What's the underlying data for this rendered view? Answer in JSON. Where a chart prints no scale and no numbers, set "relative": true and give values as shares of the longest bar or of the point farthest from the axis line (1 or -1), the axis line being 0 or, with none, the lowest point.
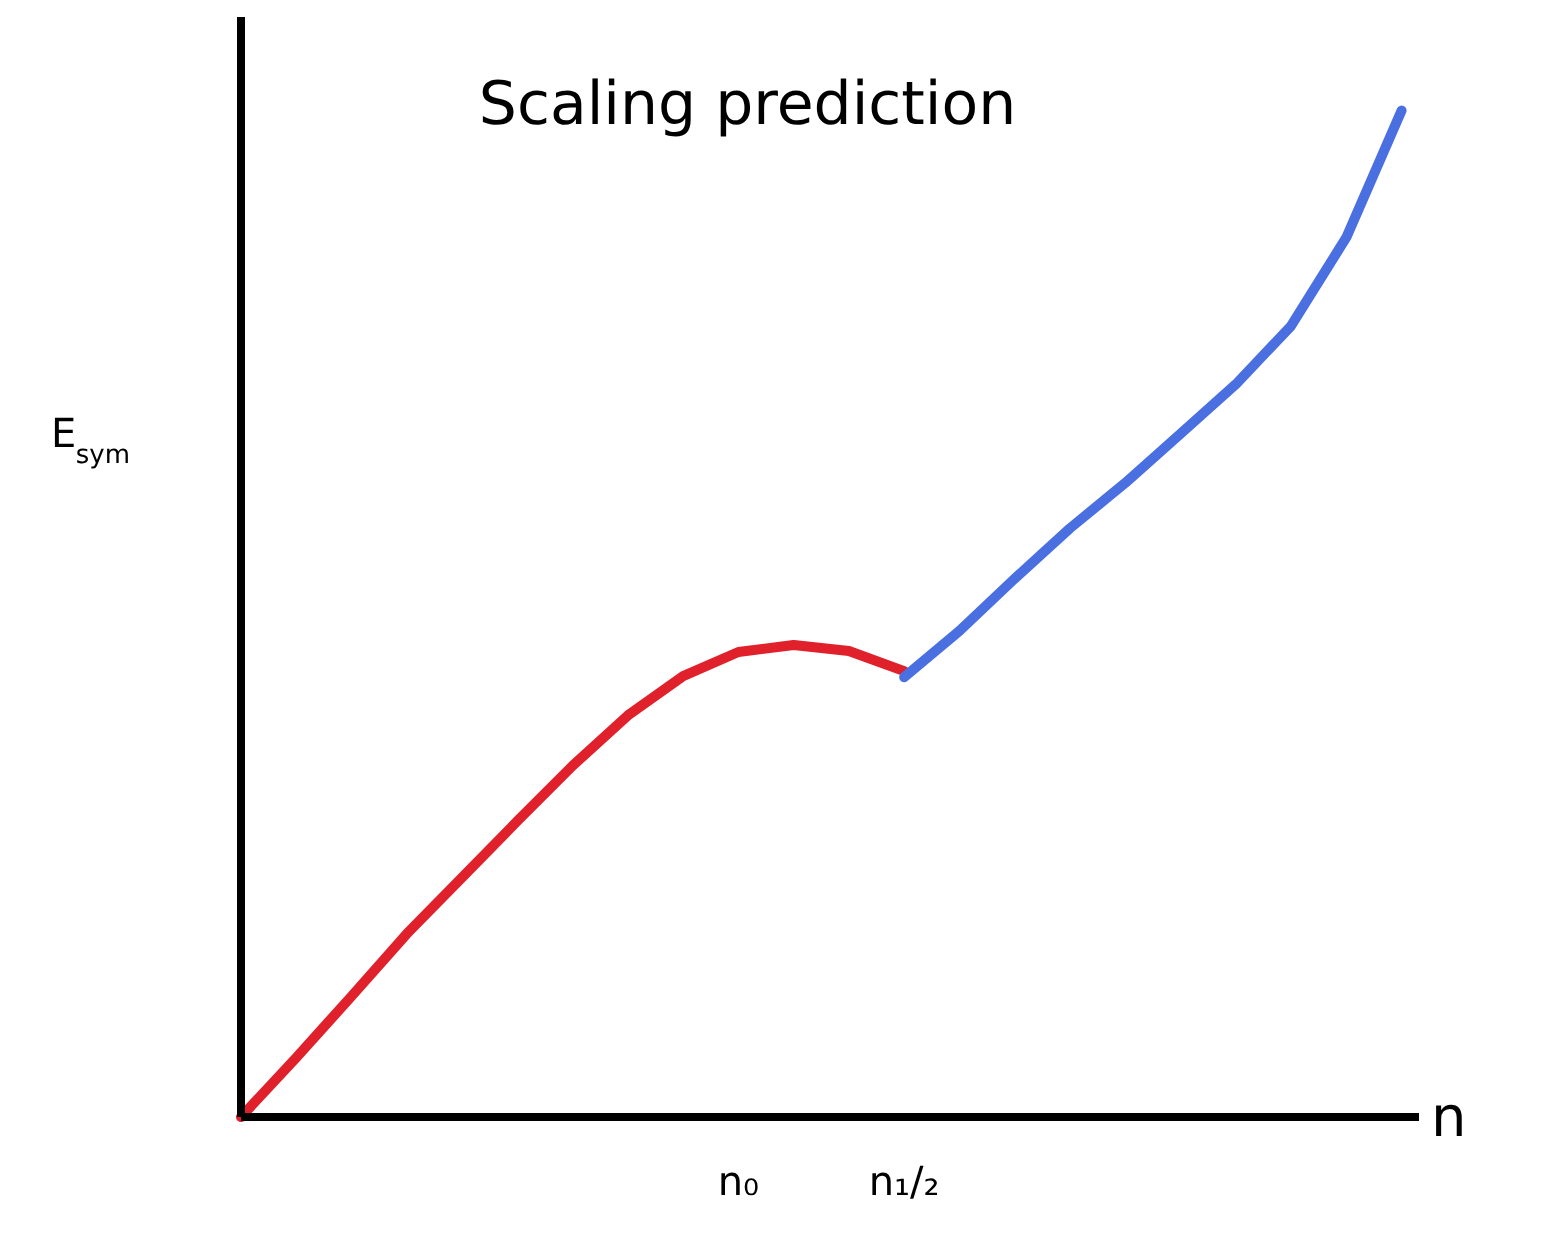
{
  "chart_data": {
    "type": "line",
    "relative": true,
    "title": "Scaling prediction",
    "xlabel": "n",
    "ylabel": "E$_{sym}$",
    "categories": [
      null,
      null,
      null,
      null,
      null,
      null,
      null,
      null,
      null,
      "n₀",
      null,
      null,
      "n₁/₂",
      null,
      null,
      null,
      null,
      null,
      null,
      null,
      null,
      null
    ],
    "series": [
      {
        "color": "#e0202a",
        "values": [
          0,
          0.059,
          0.12,
          0.182,
          0.238,
          0.294,
          0.349,
          0.399,
          0.438,
          0.462,
          0.469,
          0.463,
          0.443,
          null,
          null,
          null,
          null,
          null,
          null,
          null,
          null,
          null
        ]
      },
      {
        "color": "#4a6fe0",
        "values": [
          null,
          null,
          null,
          null,
          null,
          null,
          null,
          null,
          null,
          null,
          null,
          null,
          0.437,
          0.483,
          0.535,
          0.585,
          0.63,
          0.679,
          0.728,
          0.786,
          0.874,
          1
        ]
      }
    ]
  }
}
